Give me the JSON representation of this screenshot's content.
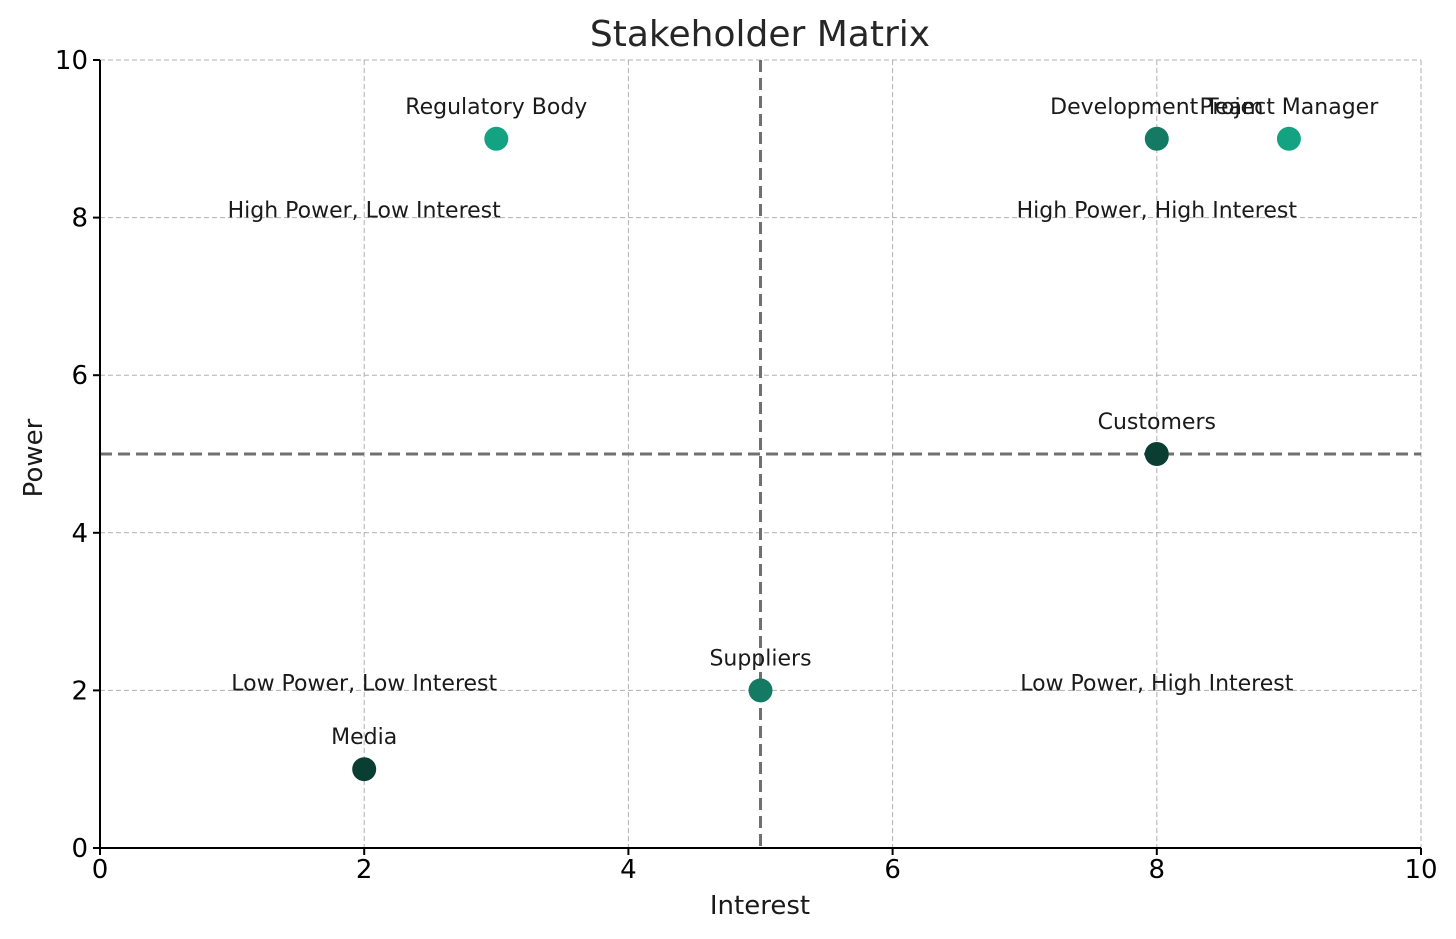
{
  "chart_data": {
    "type": "scatter",
    "title": "Stakeholder Matrix",
    "xlabel": "Interest",
    "ylabel": "Power",
    "xlim": [
      0,
      10
    ],
    "ylim": [
      0,
      10
    ],
    "xticks": [
      0,
      2,
      4,
      6,
      8,
      10
    ],
    "yticks": [
      0,
      2,
      4,
      6,
      8,
      10
    ],
    "grid": true,
    "dividers": {
      "x": 5,
      "y": 5
    },
    "points": [
      {
        "label": "Project Manager",
        "x": 9,
        "y": 9,
        "color": "#13a383"
      },
      {
        "label": "Development Team",
        "x": 8,
        "y": 9,
        "color": "#157a63"
      },
      {
        "label": "Customers",
        "x": 8,
        "y": 5,
        "color": "#0b3e33"
      },
      {
        "label": "Suppliers",
        "x": 5,
        "y": 2,
        "color": "#157a63"
      },
      {
        "label": "Regulatory Body",
        "x": 3,
        "y": 9,
        "color": "#13a383"
      },
      {
        "label": "Media",
        "x": 2,
        "y": 1,
        "color": "#0b3e33"
      }
    ],
    "quadrant_labels": [
      {
        "text": "High Power, High Interest",
        "x": 8,
        "y": 8
      },
      {
        "text": "High Power, Low Interest",
        "x": 2,
        "y": 8
      },
      {
        "text": "Low Power, High Interest",
        "x": 8,
        "y": 2
      },
      {
        "text": "Low Power, Low Interest",
        "x": 2,
        "y": 2
      }
    ]
  }
}
